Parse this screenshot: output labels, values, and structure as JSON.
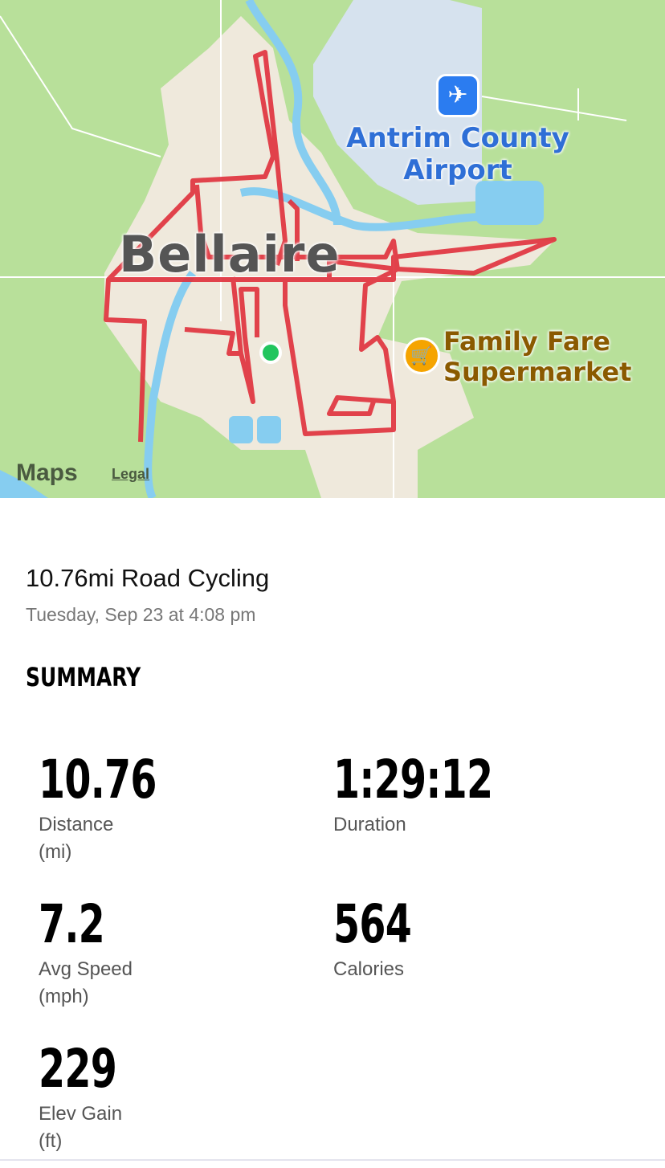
{
  "map": {
    "town_label": "Bellaire",
    "airport_label": [
      "Antrim County",
      "Airport"
    ],
    "store_label": [
      "Family Fare",
      "Supermarket"
    ],
    "attribution": "Maps",
    "legal_link": "Legal",
    "route_color": "#e0303c",
    "start_color": "#22c55e",
    "icons": {
      "airport": "airplane-icon",
      "store": "shopping-cart-icon",
      "brand": "apple-logo-icon"
    }
  },
  "activity": {
    "title": "10.76mi Road Cycling",
    "datetime": "Tuesday, Sep 23 at 4:08 pm"
  },
  "summary": {
    "heading": "SUMMARY",
    "stats": [
      {
        "value": "10.76",
        "label": "Distance",
        "unit": "(mi)"
      },
      {
        "value": "1:29:12",
        "label": "Duration",
        "unit": ""
      },
      {
        "value": "7.2",
        "label": "Avg Speed",
        "unit": "(mph)"
      },
      {
        "value": "564",
        "label": "Calories",
        "unit": ""
      },
      {
        "value": "229",
        "label": "Elev Gain",
        "unit": "(ft)"
      }
    ]
  }
}
